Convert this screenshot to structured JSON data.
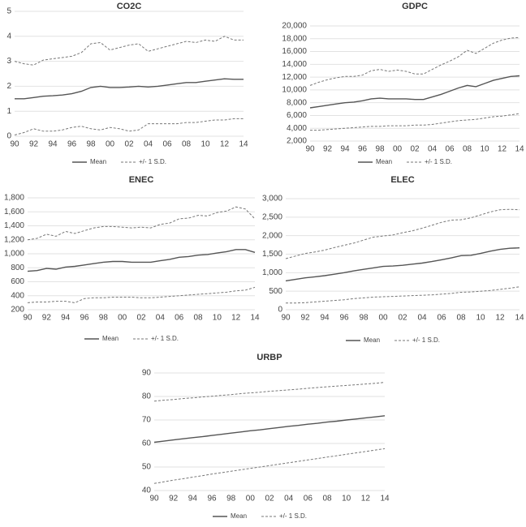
{
  "chart_data": [
    {
      "type": "line",
      "title": "CO2C",
      "categories": [
        "90",
        null,
        "92",
        null,
        "94",
        null,
        "96",
        null,
        "98",
        null,
        "00",
        null,
        "02",
        null,
        "04",
        null,
        "06",
        null,
        "08",
        null,
        "10",
        null,
        "12",
        null,
        "14"
      ],
      "ylim": [
        0,
        5
      ],
      "yticks": [
        0,
        1,
        2,
        3,
        4,
        5
      ],
      "grid": true,
      "series": [
        {
          "name": "Mean",
          "color": "#555555",
          "dashed": false,
          "values": [
            1.5,
            1.5,
            1.55,
            1.6,
            1.62,
            1.65,
            1.7,
            1.8,
            1.95,
            2.0,
            1.95,
            1.95,
            1.97,
            2.0,
            1.97,
            2.0,
            2.05,
            2.1,
            2.15,
            2.15,
            2.2,
            2.25,
            2.3,
            2.28,
            2.28
          ]
        },
        {
          "name": "+/- 1 S.D.",
          "color": "#777777",
          "dashed": true,
          "values": [
            3.0,
            2.9,
            2.85,
            3.05,
            3.1,
            3.15,
            3.2,
            3.35,
            3.7,
            3.75,
            3.45,
            3.55,
            3.65,
            3.7,
            3.4,
            3.5,
            3.6,
            3.7,
            3.8,
            3.75,
            3.85,
            3.8,
            4.0,
            3.85,
            3.85
          ],
          "lower_values": [
            0.05,
            0.15,
            0.3,
            0.2,
            0.2,
            0.25,
            0.35,
            0.4,
            0.3,
            0.25,
            0.35,
            0.3,
            0.2,
            0.25,
            0.5,
            0.5,
            0.5,
            0.5,
            0.55,
            0.55,
            0.6,
            0.65,
            0.65,
            0.7,
            0.7
          ]
        }
      ]
    },
    {
      "type": "line",
      "title": "GDPC",
      "categories": [
        "90",
        null,
        "92",
        null,
        "94",
        null,
        "96",
        null,
        "98",
        null,
        "00",
        null,
        "02",
        null,
        "04",
        null,
        "06",
        null,
        "08",
        null,
        "10",
        null,
        "12",
        null,
        "14"
      ],
      "ylim": [
        2000,
        20000
      ],
      "yticks": [
        {
          "value": 2000,
          "label": "2,000"
        },
        {
          "value": 4000,
          "label": "4,000"
        },
        {
          "value": 6000,
          "label": "6,000"
        },
        {
          "value": 8000,
          "label": "8,000"
        },
        {
          "value": 10000,
          "label": "10,000"
        },
        {
          "value": 12000,
          "label": "12,000"
        },
        {
          "value": 14000,
          "label": "14,000"
        },
        {
          "value": 16000,
          "label": "16,000"
        },
        {
          "value": 18000,
          "label": "18,000"
        },
        {
          "value": 20000,
          "label": "20,000"
        }
      ],
      "grid": true,
      "series": [
        {
          "name": "Mean",
          "color": "#555555",
          "dashed": false,
          "values": [
            7200,
            7400,
            7600,
            7800,
            8000,
            8100,
            8300,
            8600,
            8700,
            8600,
            8600,
            8600,
            8500,
            8500,
            8900,
            9300,
            9800,
            10300,
            10700,
            10500,
            11000,
            11500,
            11800,
            12100,
            12200
          ]
        },
        {
          "name": "+/- 1 S.D.",
          "color": "#777777",
          "dashed": true,
          "values": [
            10700,
            11200,
            11600,
            11900,
            12100,
            12100,
            12300,
            13000,
            13200,
            12900,
            13100,
            12900,
            12500,
            12500,
            13200,
            13900,
            14500,
            15200,
            16200,
            15700,
            16500,
            17300,
            17800,
            18100,
            18200
          ],
          "lower_values": [
            3700,
            3700,
            3800,
            3900,
            4000,
            4100,
            4200,
            4300,
            4300,
            4400,
            4400,
            4400,
            4500,
            4500,
            4600,
            4800,
            5000,
            5200,
            5300,
            5400,
            5600,
            5800,
            5900,
            6100,
            6300
          ]
        }
      ]
    },
    {
      "type": "line",
      "title": "ENEC",
      "categories": [
        "90",
        null,
        "92",
        null,
        "94",
        null,
        "96",
        null,
        "98",
        null,
        "00",
        null,
        "02",
        null,
        "04",
        null,
        "06",
        null,
        "08",
        null,
        "10",
        null,
        "12",
        null,
        "14"
      ],
      "ylim": [
        200,
        1800
      ],
      "yticks": [
        200,
        400,
        600,
        800,
        {
          "value": 1000,
          "label": "1,000"
        },
        {
          "value": 1200,
          "label": "1,200"
        },
        {
          "value": 1400,
          "label": "1,400"
        },
        {
          "value": 1600,
          "label": "1,600"
        },
        {
          "value": 1800,
          "label": "1,800"
        }
      ],
      "grid": true,
      "series": [
        {
          "name": "Mean",
          "color": "#555555",
          "dashed": false,
          "values": [
            750,
            760,
            790,
            780,
            810,
            820,
            840,
            860,
            880,
            890,
            890,
            880,
            880,
            880,
            900,
            920,
            950,
            960,
            980,
            990,
            1010,
            1030,
            1060,
            1060,
            1020
          ]
        },
        {
          "name": "+/- 1 S.D.",
          "color": "#777777",
          "dashed": true,
          "values": [
            1200,
            1220,
            1280,
            1250,
            1320,
            1290,
            1330,
            1370,
            1390,
            1390,
            1380,
            1370,
            1380,
            1370,
            1420,
            1440,
            1500,
            1510,
            1550,
            1540,
            1590,
            1610,
            1670,
            1640,
            1500
          ],
          "lower_values": [
            300,
            310,
            310,
            320,
            320,
            300,
            360,
            370,
            370,
            380,
            380,
            380,
            370,
            370,
            380,
            390,
            400,
            410,
            420,
            430,
            440,
            450,
            470,
            480,
            520
          ]
        }
      ]
    },
    {
      "type": "line",
      "title": "ELEC",
      "categories": [
        "90",
        null,
        "92",
        null,
        "94",
        null,
        "96",
        null,
        "98",
        null,
        "00",
        null,
        "02",
        null,
        "04",
        null,
        "06",
        null,
        "08",
        null,
        "10",
        null,
        "12",
        null,
        "14"
      ],
      "ylim": [
        0,
        3000
      ],
      "yticks": [
        0,
        500,
        {
          "value": 1000,
          "label": "1,000"
        },
        {
          "value": 1500,
          "label": "1,500"
        },
        {
          "value": 2000,
          "label": "2,000"
        },
        {
          "value": 2500,
          "label": "2,500"
        },
        {
          "value": 3000,
          "label": "3,000"
        }
      ],
      "grid": true,
      "series": [
        {
          "name": "Mean",
          "color": "#555555",
          "dashed": false,
          "values": [
            780,
            820,
            860,
            890,
            920,
            960,
            1000,
            1050,
            1090,
            1130,
            1170,
            1180,
            1200,
            1230,
            1260,
            1300,
            1350,
            1400,
            1460,
            1470,
            1520,
            1580,
            1630,
            1660,
            1670
          ]
        },
        {
          "name": "+/- 1 S.D.",
          "color": "#777777",
          "dashed": true,
          "values": [
            1380,
            1450,
            1520,
            1560,
            1610,
            1680,
            1740,
            1800,
            1880,
            1960,
            1990,
            2020,
            2080,
            2130,
            2200,
            2280,
            2360,
            2420,
            2430,
            2480,
            2560,
            2640,
            2700,
            2710,
            2700
          ],
          "lower_values": [
            180,
            180,
            190,
            210,
            230,
            250,
            270,
            300,
            320,
            340,
            350,
            360,
            370,
            380,
            390,
            400,
            420,
            440,
            470,
            480,
            500,
            520,
            550,
            580,
            620
          ]
        }
      ]
    },
    {
      "type": "line",
      "title": "URBP",
      "categories": [
        "90",
        null,
        "92",
        null,
        "94",
        null,
        "96",
        null,
        "98",
        null,
        "00",
        null,
        "02",
        null,
        "04",
        null,
        "06",
        null,
        "08",
        null,
        "10",
        null,
        "12",
        null,
        "14"
      ],
      "ylim": [
        40,
        90
      ],
      "yticks": [
        40,
        50,
        60,
        70,
        80,
        90
      ],
      "grid": true,
      "series": [
        {
          "name": "Mean",
          "color": "#555555",
          "dashed": false,
          "values": [
            60.5,
            61,
            61.5,
            62,
            62.5,
            62.9,
            63.4,
            63.9,
            64.4,
            64.9,
            65.4,
            65.8,
            66.3,
            66.8,
            67.3,
            67.7,
            68.2,
            68.6,
            69.1,
            69.5,
            70,
            70.4,
            70.9,
            71.3,
            71.8
          ]
        },
        {
          "name": "+/- 1 S.D.",
          "color": "#777777",
          "dashed": true,
          "values": [
            78,
            78.4,
            78.7,
            79.1,
            79.4,
            79.8,
            80.1,
            80.5,
            80.8,
            81.2,
            81.5,
            81.8,
            82.2,
            82.5,
            82.8,
            83.1,
            83.5,
            83.8,
            84.1,
            84.4,
            84.7,
            85,
            85.3,
            85.6,
            86
          ],
          "lower_values": [
            43,
            43.7,
            44.4,
            45,
            45.7,
            46.3,
            47,
            47.6,
            48.2,
            48.8,
            49.4,
            50,
            50.6,
            51.2,
            51.8,
            52.4,
            53,
            53.6,
            54.2,
            54.8,
            55.4,
            56,
            56.6,
            57.2,
            57.8
          ]
        }
      ]
    }
  ]
}
